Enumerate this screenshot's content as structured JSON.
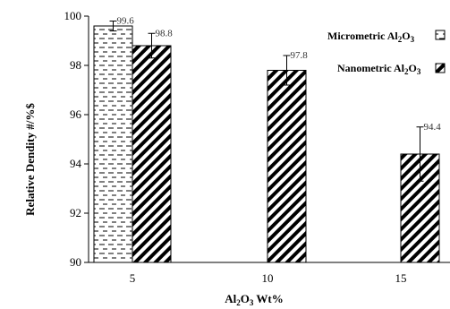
{
  "chart_data": {
    "type": "bar",
    "title": "",
    "xlabel": "Al2O3 Wt%",
    "ylabel": "Relative Dendity #/%$",
    "ylim": [
      90,
      100
    ],
    "yticks": [
      "90",
      "92",
      "94",
      "96",
      "98",
      "100"
    ],
    "categories": [
      "5",
      "10",
      "15"
    ],
    "series": [
      {
        "name": "Micrometric Al2O3",
        "pattern": "dashes",
        "values": [
          99.6,
          null,
          null
        ],
        "errors": [
          0.2,
          null,
          null
        ],
        "labels": [
          "99.6",
          "",
          ""
        ]
      },
      {
        "name": "Nanometric Al2O3",
        "pattern": "diagonal-hatch",
        "values": [
          98.8,
          97.8,
          94.4
        ],
        "errors": [
          0.5,
          0.6,
          1.1
        ],
        "labels": [
          "98.8",
          "97.8",
          "94.4"
        ]
      }
    ],
    "legend_position": "top-right",
    "grid": false
  }
}
